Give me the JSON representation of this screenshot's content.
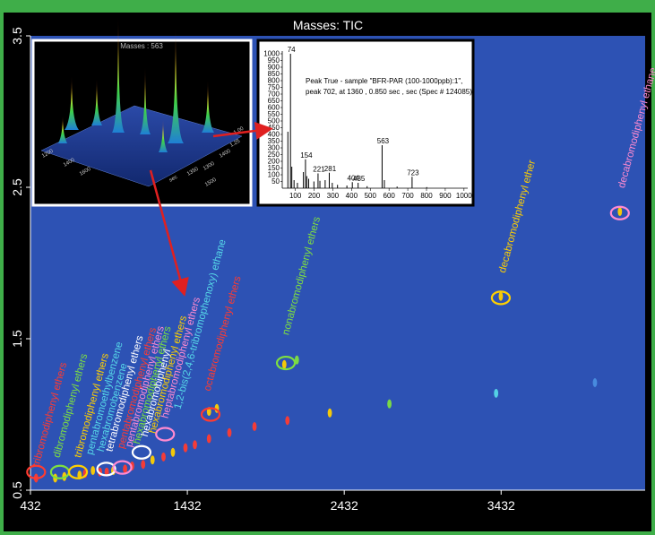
{
  "colors": {
    "frame": "#3fae49",
    "background": "#000000",
    "plot_area": "#2d52b4",
    "arrow": "#e02020",
    "inset_3d_border": "#ffffff",
    "inset_ms_border": "#000000"
  },
  "chart_data": {
    "type": "scatter",
    "title": "Masses: TIC",
    "xlabel": "",
    "ylabel": "",
    "xlim": [
      432,
      4350
    ],
    "ylim": [
      0.5,
      3.5
    ],
    "x_ticks": [
      "432",
      "1432",
      "2432",
      "3432"
    ],
    "y_ticks": [
      "0.5",
      "1.5",
      "2.5",
      "3.5"
    ],
    "grid": false,
    "legend": "none",
    "points": [
      {
        "x": 468,
        "y": 0.58,
        "color": "#ff3b30"
      },
      {
        "x": 590,
        "y": 0.58,
        "color": "#ffd000"
      },
      {
        "x": 648,
        "y": 0.59,
        "color": "#ffd000"
      },
      {
        "x": 745,
        "y": 0.6,
        "color": "#ffd000"
      },
      {
        "x": 780,
        "y": 0.61,
        "color": "#ff3b30"
      },
      {
        "x": 830,
        "y": 0.63,
        "color": "#ffd000"
      },
      {
        "x": 875,
        "y": 0.62,
        "color": "#ff3b30"
      },
      {
        "x": 918,
        "y": 0.62,
        "color": "#ff3b30"
      },
      {
        "x": 960,
        "y": 0.63,
        "color": "#ffd000"
      },
      {
        "x": 1035,
        "y": 0.64,
        "color": "#ff3b30"
      },
      {
        "x": 1080,
        "y": 0.66,
        "color": "#ff3b30"
      },
      {
        "x": 1150,
        "y": 0.67,
        "color": "#ff3b30"
      },
      {
        "x": 1210,
        "y": 0.7,
        "color": "#ffd000"
      },
      {
        "x": 1280,
        "y": 0.72,
        "color": "#ff3b30"
      },
      {
        "x": 1340,
        "y": 0.75,
        "color": "#ffd000"
      },
      {
        "x": 1420,
        "y": 0.78,
        "color": "#ff3b30"
      },
      {
        "x": 1480,
        "y": 0.8,
        "color": "#ff3b30"
      },
      {
        "x": 1570,
        "y": 0.84,
        "color": "#ff3b30"
      },
      {
        "x": 1700,
        "y": 0.88,
        "color": "#ff3b30"
      },
      {
        "x": 1860,
        "y": 0.92,
        "color": "#ff3b30"
      },
      {
        "x": 2070,
        "y": 0.96,
        "color": "#ff3b30"
      },
      {
        "x": 2340,
        "y": 1.01,
        "color": "#ffd000"
      },
      {
        "x": 2720,
        "y": 1.07,
        "color": "#7ee040"
      },
      {
        "x": 3400,
        "y": 1.14,
        "color": "#56d8e8"
      },
      {
        "x": 4030,
        "y": 1.21,
        "color": "#4a8ee0"
      },
      {
        "x": 1570,
        "y": 1.02,
        "color": "#ffd000"
      },
      {
        "x": 1620,
        "y": 1.04,
        "color": "#ffd000"
      },
      {
        "x": 2050,
        "y": 1.33,
        "color": "#ffd000"
      },
      {
        "x": 2130,
        "y": 1.36,
        "color": "#7ee040"
      },
      {
        "x": 3430,
        "y": 1.78,
        "color": "#ffd000"
      },
      {
        "x": 4189,
        "y": 2.34,
        "color": "#ffd000"
      }
    ],
    "annotations": [
      {
        "text": "tribromodiphenyl ethers",
        "color": "#ff3b30",
        "x": 468,
        "y": 0.58
      },
      {
        "text": "dibromodiphenyl ethers",
        "color": "#7ee040",
        "x": 600,
        "y": 0.64
      },
      {
        "text": "tribromodiphenyl ethers",
        "color": "#ffd000",
        "x": 735,
        "y": 0.64
      },
      {
        "text": "pentabromoethylbenzene",
        "color": "#56d8e8",
        "x": 810,
        "y": 0.66
      },
      {
        "text": "hexabromobenzene",
        "color": "#56d8e8",
        "x": 880,
        "y": 0.68
      },
      {
        "text": "tetrabromodiphenyl ethers",
        "color": "#ffffff",
        "x": 935,
        "y": 0.68
      },
      {
        "text": "pentabromodiphenyl ethers",
        "color": "#ff3b30",
        "x": 1010,
        "y": 0.7
      },
      {
        "text": "pentabromodiphenyl ethers",
        "color": "#ff8ad0",
        "x": 1060,
        "y": 0.71
      },
      {
        "text": "hexabromodiphenyl ethers",
        "color": "#7ee040",
        "x": 1110,
        "y": 0.73
      },
      {
        "text": "hexabromobiphenyl",
        "color": "#ffffff",
        "x": 1160,
        "y": 0.78
      },
      {
        "text": "hexabromodiphenyl ethers",
        "color": "#ffd000",
        "x": 1210,
        "y": 0.8
      },
      {
        "text": "heptabromodiphenyl ethers",
        "color": "#ff8ad0",
        "x": 1290,
        "y": 0.9
      },
      {
        "text": "1,2-bis(2,4,6-tribromophenoxy) ethane",
        "color": "#56d8e8",
        "x": 1370,
        "y": 0.96
      },
      {
        "text": "octabromodiphenyl ethers",
        "color": "#ff3b30",
        "x": 1560,
        "y": 1.08
      },
      {
        "text": "nonabromodiphenyl ethers",
        "color": "#7ee040",
        "x": 2060,
        "y": 1.45
      },
      {
        "text": "decabromodiphenyl ether",
        "color": "#ffd000",
        "x": 3440,
        "y": 1.86
      },
      {
        "text": "decabromodiphenyl ethane",
        "color": "#ff8ad0",
        "x": 4200,
        "y": 2.42
      }
    ],
    "ellipses": [
      {
        "x": 468,
        "y": 0.62,
        "color": "#ff3b30"
      },
      {
        "x": 620,
        "y": 0.62,
        "color": "#7ee040"
      },
      {
        "x": 735,
        "y": 0.62,
        "color": "#ffd000"
      },
      {
        "x": 915,
        "y": 0.64,
        "color": "#ffffff"
      },
      {
        "x": 1018,
        "y": 0.65,
        "color": "#ff8ad0"
      },
      {
        "x": 1140,
        "y": 0.75,
        "color": "#ffffff"
      },
      {
        "x": 1290,
        "y": 0.87,
        "color": "#ff8ad0"
      },
      {
        "x": 1580,
        "y": 1.0,
        "color": "#ff3b30"
      },
      {
        "x": 2060,
        "y": 1.34,
        "color": "#7ee040"
      },
      {
        "x": 3430,
        "y": 1.77,
        "color": "#ffd000"
      },
      {
        "x": 4189,
        "y": 2.33,
        "color": "#ff8ad0"
      }
    ],
    "inset_3d": {
      "title": "Masses : 563",
      "axis_text": [
        "1200",
        "1400",
        "1600",
        "1350",
        "1300",
        "1400",
        "1500",
        "sec",
        "1.25",
        "1.00"
      ]
    },
    "inset_ms": {
      "type": "bar",
      "caption_lines": [
        "Peak True - sample \"BFR-PAR (100-1000ppb):1\",",
        "peak 702, at 1360 , 0.850 sec , sec (Spec # 124085)"
      ],
      "x_ticks": [
        "100",
        "200",
        "300",
        "400",
        "500",
        "600",
        "700",
        "800",
        "900",
        "1000"
      ],
      "y_ticks": [
        "1000",
        "950",
        "900",
        "850",
        "800",
        "750",
        "700",
        "650",
        "600",
        "550",
        "500",
        "450",
        "400",
        "350",
        "300",
        "250",
        "200",
        "150",
        "100",
        "50"
      ],
      "xlim": [
        30,
        1020
      ],
      "ylim": [
        0,
        1000
      ],
      "peak_labels": [
        "74",
        "154",
        "221",
        "281",
        "404",
        "435",
        "563",
        "723"
      ],
      "peaks": [
        {
          "mz": 74,
          "intensity": 1000,
          "label": "74"
        },
        {
          "mz": 60,
          "intensity": 420
        },
        {
          "mz": 81,
          "intensity": 160
        },
        {
          "mz": 93,
          "intensity": 60
        },
        {
          "mz": 111,
          "intensity": 40
        },
        {
          "mz": 143,
          "intensity": 120
        },
        {
          "mz": 154,
          "intensity": 215,
          "label": "154"
        },
        {
          "mz": 161,
          "intensity": 90
        },
        {
          "mz": 171,
          "intensity": 70
        },
        {
          "mz": 199,
          "intensity": 50
        },
        {
          "mz": 221,
          "intensity": 110,
          "label": "221"
        },
        {
          "mz": 231,
          "intensity": 55
        },
        {
          "mz": 259,
          "intensity": 60
        },
        {
          "mz": 281,
          "intensity": 115,
          "label": "281"
        },
        {
          "mz": 297,
          "intensity": 40
        },
        {
          "mz": 325,
          "intensity": 25
        },
        {
          "mz": 375,
          "intensity": 20
        },
        {
          "mz": 404,
          "intensity": 45,
          "label": "404"
        },
        {
          "mz": 435,
          "intensity": 40,
          "label": "435"
        },
        {
          "mz": 483,
          "intensity": 15
        },
        {
          "mz": 563,
          "intensity": 320,
          "label": "563"
        },
        {
          "mz": 575,
          "intensity": 60
        },
        {
          "mz": 643,
          "intensity": 12
        },
        {
          "mz": 723,
          "intensity": 85,
          "label": "723"
        },
        {
          "mz": 801,
          "intensity": 8
        }
      ]
    }
  }
}
